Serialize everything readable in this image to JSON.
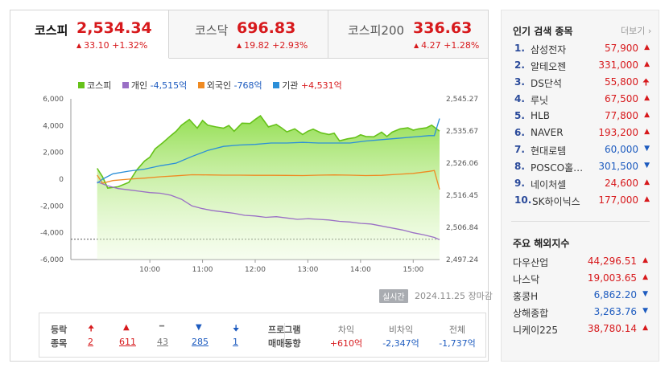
{
  "tabs": [
    {
      "name": "코스피",
      "value": "2,534.34",
      "change": "33.10 +1.32%",
      "direction": "up"
    },
    {
      "name": "코스닥",
      "value": "696.83",
      "change": "19.82 +2.93%",
      "direction": "up"
    },
    {
      "name": "코스피200",
      "value": "336.63",
      "change": "4.27 +1.28%",
      "direction": "up"
    }
  ],
  "legend": [
    {
      "name": "코스피",
      "value": "",
      "color": "#66c21a"
    },
    {
      "name": "개인",
      "value": "-4,515억",
      "color": "#9a6fc5"
    },
    {
      "name": "외국인",
      "value": "-768억",
      "color": "#ef8a22"
    },
    {
      "name": "기관",
      "value": "+4,531억",
      "color": "#2c8fd8"
    }
  ],
  "chart_data": {
    "type": "line",
    "left_axis_ticks": [
      "6,000",
      "4,000",
      "2,000",
      "0",
      "-2,000",
      "-4,000",
      "-6,000"
    ],
    "left_ylim": [
      -6000,
      6000
    ],
    "right_axis_ticks": [
      "2,545.27",
      "2,535.67",
      "2,526.06",
      "2,516.45",
      "2,506.84",
      "2,497.24"
    ],
    "right_ylim": [
      2497.24,
      2545.27
    ],
    "x_ticks": [
      "10:00",
      "11:00",
      "12:00",
      "13:00",
      "14:00",
      "15:00"
    ],
    "series": [
      {
        "name": "코스피",
        "axis": "right",
        "color": "#66c21a",
        "x": [
          9.0,
          9.1,
          9.2,
          9.4,
          9.6,
          9.75,
          9.9,
          10.0,
          10.1,
          10.25,
          10.4,
          10.5,
          10.6,
          10.75,
          10.9,
          11.0,
          11.1,
          11.25,
          11.4,
          11.5,
          11.6,
          11.75,
          11.9,
          12.0,
          12.1,
          12.25,
          12.4,
          12.5,
          12.6,
          12.75,
          12.9,
          13.0,
          13.1,
          13.25,
          13.4,
          13.5,
          13.6,
          13.75,
          13.9,
          14.0,
          14.1,
          14.25,
          14.4,
          14.5,
          14.6,
          14.75,
          14.9,
          15.0,
          15.1,
          15.25,
          15.35,
          15.5
        ],
        "values": [
          2524.5,
          2522.0,
          2518.6,
          2519.0,
          2520.3,
          2524.0,
          2526.7,
          2527.8,
          2530.3,
          2532.2,
          2534.3,
          2535.6,
          2537.4,
          2539.1,
          2536.5,
          2538.8,
          2537.4,
          2536.9,
          2536.5,
          2537.3,
          2535.6,
          2538.0,
          2537.9,
          2539.1,
          2540.2,
          2536.9,
          2537.6,
          2536.6,
          2535.4,
          2536.3,
          2534.6,
          2535.6,
          2536.2,
          2535.1,
          2534.6,
          2535.0,
          2532.7,
          2533.3,
          2533.7,
          2534.5,
          2534.0,
          2533.9,
          2535.3,
          2534.0,
          2535.3,
          2536.3,
          2536.6,
          2535.9,
          2536.3,
          2536.6,
          2537.4,
          2535.6
        ]
      },
      {
        "name": "개인",
        "axis": "left",
        "color": "#9a6fc5",
        "x": [
          9.0,
          9.2,
          9.4,
          9.6,
          9.8,
          10.0,
          10.2,
          10.4,
          10.6,
          10.8,
          11.0,
          11.2,
          11.4,
          11.6,
          11.8,
          12.0,
          12.2,
          12.4,
          12.6,
          12.8,
          13.0,
          13.2,
          13.4,
          13.6,
          13.8,
          14.0,
          14.2,
          14.4,
          14.6,
          14.8,
          15.0,
          15.2,
          15.4,
          15.5
        ],
        "values": [
          -200,
          -500,
          -700,
          -800,
          -900,
          -1000,
          -1050,
          -1200,
          -1500,
          -2000,
          -2200,
          -2350,
          -2450,
          -2550,
          -2700,
          -2750,
          -2850,
          -2800,
          -2900,
          -3000,
          -2950,
          -3000,
          -3050,
          -3150,
          -3200,
          -3300,
          -3350,
          -3500,
          -3650,
          -3800,
          -4000,
          -4150,
          -4350,
          -4515
        ]
      },
      {
        "name": "외국인",
        "axis": "left",
        "color": "#ef8a22",
        "x": [
          9.0,
          9.1,
          9.3,
          9.6,
          9.9,
          10.2,
          10.5,
          10.8,
          11.1,
          11.4,
          11.7,
          12.0,
          12.3,
          12.6,
          12.9,
          13.2,
          13.5,
          13.8,
          14.1,
          14.4,
          14.7,
          15.0,
          15.3,
          15.4,
          15.5
        ],
        "values": [
          300,
          -300,
          -100,
          0,
          80,
          180,
          250,
          330,
          320,
          300,
          300,
          290,
          290,
          280,
          270,
          300,
          320,
          300,
          270,
          290,
          360,
          430,
          580,
          650,
          -768
        ]
      },
      {
        "name": "기관",
        "axis": "left",
        "color": "#2c8fd8",
        "x": [
          9.0,
          9.1,
          9.3,
          9.6,
          9.9,
          10.2,
          10.5,
          10.8,
          11.1,
          11.4,
          11.7,
          12.0,
          12.3,
          12.6,
          12.9,
          13.2,
          13.5,
          13.8,
          14.1,
          14.4,
          14.7,
          15.0,
          15.3,
          15.4,
          15.5
        ],
        "values": [
          -300,
          0,
          400,
          600,
          750,
          1000,
          1200,
          1700,
          2150,
          2450,
          2550,
          2600,
          2700,
          2700,
          2750,
          2700,
          2700,
          2700,
          2850,
          2950,
          3050,
          3150,
          3250,
          3250,
          4531
        ]
      }
    ]
  },
  "status": {
    "badge": "실시간",
    "datetime": "2024.11.25",
    "closed": "장마감"
  },
  "breadth": {
    "label_top": "등락",
    "label_bottom": "종목",
    "items": [
      {
        "icon": "limit-up",
        "value": "2"
      },
      {
        "icon": "up",
        "value": "611"
      },
      {
        "icon": "flat",
        "value": "43"
      },
      {
        "icon": "down",
        "value": "285"
      },
      {
        "icon": "limit-down",
        "value": "1"
      }
    ]
  },
  "program": {
    "label_top": "프로그램",
    "label_bottom": "매매동향",
    "columns": [
      {
        "label": "차익",
        "value": "+610억"
      },
      {
        "label": "비차익",
        "value": "-2,347억"
      },
      {
        "label": "전체",
        "value": "-1,737억"
      }
    ]
  },
  "popular": {
    "title": "인기 검색 종목",
    "more": "더보기",
    "items": [
      {
        "rank": "1.",
        "name": "삼성전자",
        "price": "57,900",
        "dir": "up"
      },
      {
        "rank": "2.",
        "name": "알테오젠",
        "price": "331,000",
        "dir": "up"
      },
      {
        "rank": "3.",
        "name": "DS단석",
        "price": "55,800",
        "dir": "limit-up"
      },
      {
        "rank": "4.",
        "name": "루닛",
        "price": "67,500",
        "dir": "up"
      },
      {
        "rank": "5.",
        "name": "HLB",
        "price": "77,800",
        "dir": "up"
      },
      {
        "rank": "6.",
        "name": "NAVER",
        "price": "193,200",
        "dir": "up"
      },
      {
        "rank": "7.",
        "name": "현대로템",
        "price": "60,000",
        "dir": "down"
      },
      {
        "rank": "8.",
        "name": "POSCO홀…",
        "price": "301,500",
        "dir": "down"
      },
      {
        "rank": "9.",
        "name": "네이처셀",
        "price": "24,600",
        "dir": "up"
      },
      {
        "rank": "10.",
        "name": "SK하이닉스",
        "price": "177,000",
        "dir": "up"
      }
    ]
  },
  "world": {
    "title": "주요 해외지수",
    "items": [
      {
        "name": "다우산업",
        "price": "44,296.51",
        "dir": "up"
      },
      {
        "name": "나스닥",
        "price": "19,003.65",
        "dir": "up"
      },
      {
        "name": "홍콩H",
        "price": "6,862.20",
        "dir": "down"
      },
      {
        "name": "상해종합",
        "price": "3,263.76",
        "dir": "down"
      },
      {
        "name": "니케이225",
        "price": "38,780.14",
        "dir": "up"
      }
    ]
  }
}
